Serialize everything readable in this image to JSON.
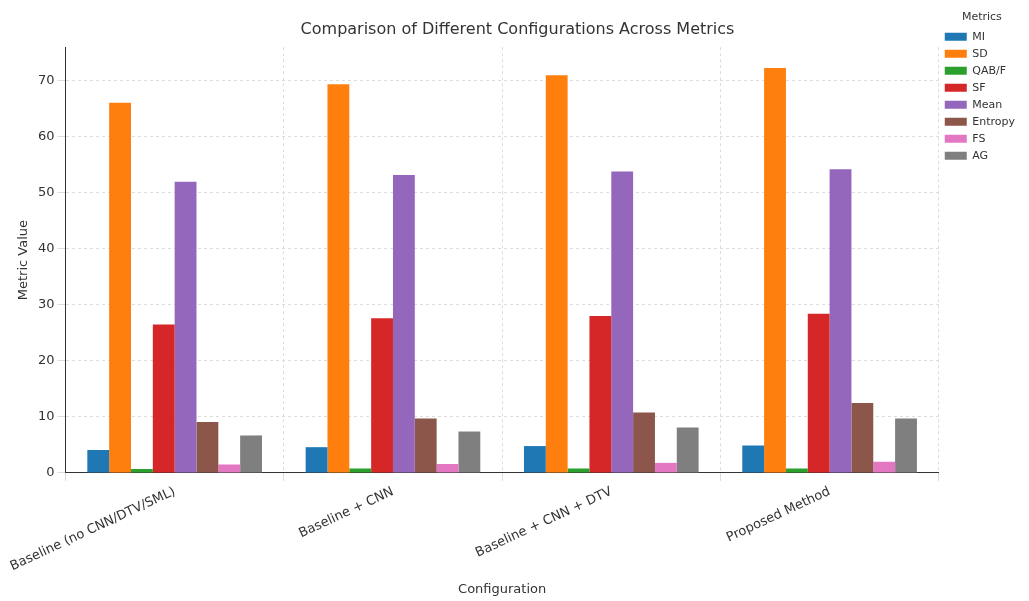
{
  "chart_data": {
    "type": "bar",
    "title": "Comparison of Different Configurations Across Metrics",
    "xlabel": "Configuration",
    "ylabel": "Metric Value",
    "legend_title": "Metrics",
    "categories": [
      "Baseline (no CNN/DTV/SML)",
      "Baseline + CNN",
      "Baseline + CNN + DTV",
      "Proposed Method"
    ],
    "series": [
      {
        "name": "MI",
        "color": "#1f77b4",
        "values": [
          4.1,
          4.6,
          4.8,
          4.9
        ]
      },
      {
        "name": "SD",
        "color": "#ff7f0e",
        "values": [
          66.1,
          69.4,
          71.0,
          72.3
        ]
      },
      {
        "name": "QAB/F",
        "color": "#2ca02c",
        "values": [
          0.7,
          0.8,
          0.8,
          0.8
        ]
      },
      {
        "name": "SF",
        "color": "#d62728",
        "values": [
          26.5,
          27.6,
          28.0,
          28.4
        ]
      },
      {
        "name": "Mean",
        "color": "#9467bd",
        "values": [
          52.0,
          53.2,
          53.8,
          54.2
        ]
      },
      {
        "name": "Entropy",
        "color": "#8c564b",
        "values": [
          9.1,
          9.7,
          10.8,
          12.5
        ]
      },
      {
        "name": "FS",
        "color": "#e377c2",
        "values": [
          1.5,
          1.6,
          1.8,
          2.0
        ]
      },
      {
        "name": "AG",
        "color": "#7f7f7f",
        "values": [
          6.7,
          7.4,
          8.1,
          9.7
        ]
      }
    ],
    "ylim": [
      0,
      76
    ],
    "yticks": [
      0,
      10,
      20,
      30,
      40,
      50,
      60,
      70
    ],
    "grid": true,
    "legend": "top right"
  }
}
